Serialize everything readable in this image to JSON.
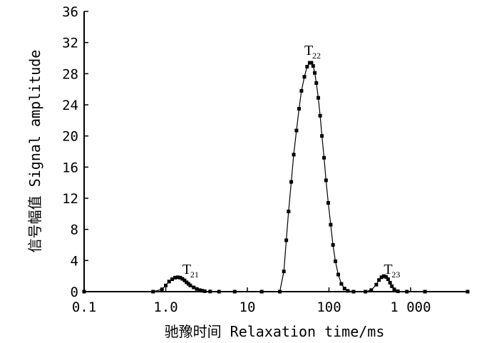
{
  "chart_data": {
    "type": "line",
    "xscale": "log",
    "xlim": [
      0.1,
      5000
    ],
    "ylim": [
      0,
      36
    ],
    "xticks": [
      0.1,
      1.0,
      10,
      100,
      1000
    ],
    "xtick_labels": [
      "0.1",
      "1.0",
      "10",
      "100",
      "1 000"
    ],
    "yticks": [
      0,
      4,
      8,
      12,
      16,
      20,
      24,
      28,
      32,
      36
    ],
    "ytick_labels": [
      "0",
      "4",
      "8",
      "12",
      "16",
      "20",
      "24",
      "28",
      "32",
      "36"
    ],
    "xlabel": "驰豫时间 Relaxation time/ms",
    "ylabel": "信号幅值 Signal amplitude",
    "grid": false,
    "series": [
      {
        "marker": "square",
        "color": "#000000",
        "x": [
          0.1,
          0.7,
          0.9,
          1.0,
          1.1,
          1.2,
          1.3,
          1.4,
          1.5,
          1.6,
          1.7,
          1.8,
          1.9,
          2.0,
          2.2,
          2.4,
          2.6,
          2.8,
          3.0,
          3.5,
          4.5,
          7,
          15,
          25,
          28,
          30,
          32,
          34.5,
          37,
          40,
          43,
          46,
          50,
          54,
          58,
          61,
          64,
          67,
          70,
          74,
          78,
          82,
          87,
          92,
          98,
          105,
          112,
          120,
          130,
          142,
          155,
          170,
          200,
          280,
          330,
          380,
          410,
          440,
          470,
          500,
          530,
          560,
          590,
          630,
          700,
          900,
          1500,
          5000
        ],
        "y": [
          0,
          0,
          0.3,
          0.8,
          1.3,
          1.6,
          1.8,
          1.85,
          1.8,
          1.65,
          1.45,
          1.2,
          1.0,
          0.8,
          0.55,
          0.35,
          0.2,
          0.12,
          0.06,
          0.02,
          0,
          0,
          0,
          0,
          2.6,
          6.6,
          10.3,
          14.1,
          17.6,
          20.7,
          23.5,
          25.8,
          27.6,
          28.9,
          29.4,
          29.4,
          29.0,
          28.1,
          26.8,
          24.9,
          22.6,
          20.0,
          17.2,
          14.3,
          11.4,
          8.6,
          6.0,
          3.9,
          2.2,
          1.0,
          0.4,
          0.1,
          0,
          0,
          0.2,
          0.9,
          1.5,
          1.85,
          2.0,
          1.9,
          1.6,
          1.15,
          0.7,
          0.3,
          0.05,
          0,
          0,
          0
        ]
      }
    ],
    "annotations": [
      {
        "main": "T",
        "sub": "21",
        "x": 1.6,
        "y": 2.3
      },
      {
        "main": "T",
        "sub": "22",
        "x": 50,
        "y": 30.4
      },
      {
        "main": "T",
        "sub": "23",
        "x": 470,
        "y": 2.3
      }
    ]
  }
}
